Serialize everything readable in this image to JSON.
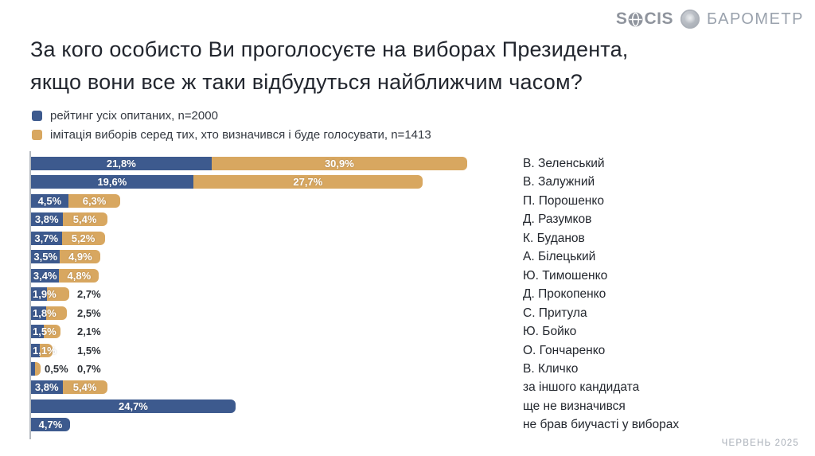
{
  "header": {
    "brand": "SOCIS",
    "product": "БАРОМЕТР"
  },
  "title": {
    "line1": "За кого особисто Ви проголосуєте на виборах Президента,",
    "line2": "якщо вони все ж таки відбудуться найближчим часом?"
  },
  "legend": {
    "items": [
      {
        "label": "рейтинг усіх опитаних, n=2000",
        "color": "#3d5a8e"
      },
      {
        "label": "імітація виборів серед тих, хто визначився і буде голосувати, n=1413",
        "color": "#d8a760"
      }
    ]
  },
  "chart_data": {
    "type": "bar",
    "orientation": "horizontal",
    "stacked": false,
    "value_unit": "%",
    "decimal_separator": ",",
    "title": "За кого особисто Ви проголосуєте на виборах Президента, якщо вони все ж таки відбудуться найближчим часом?",
    "legend_position": "top-left",
    "value_axis_hidden": true,
    "value_labels_shown": true,
    "categories": [
      "В. Зеленський",
      "В. Залужний",
      "П. Порошенко",
      "Д. Разумков",
      "К. Буданов",
      "А. Білецький",
      "Ю. Тимошенко",
      "Д. Прокопенко",
      "С. Притула",
      "Ю. Бойко",
      "О. Гончаренко",
      "В. Кличко",
      "за іншого кандидата",
      "ще не визначився",
      "не брав биучасті у виборах"
    ],
    "series": [
      {
        "name": "рейтинг усіх опитаних, n=2000",
        "color": "#3d5a8e",
        "values": [
          21.8,
          19.6,
          4.5,
          3.8,
          3.7,
          3.5,
          3.4,
          1.9,
          1.8,
          1.5,
          1.1,
          0.5,
          3.8,
          24.7,
          4.7
        ]
      },
      {
        "name": "імітація виборів серед тих, хто визначився і буде голосувати, n=1413",
        "color": "#d8a760",
        "values": [
          30.9,
          27.7,
          6.3,
          5.4,
          5.2,
          4.9,
          4.8,
          2.7,
          2.5,
          2.1,
          1.5,
          0.7,
          5.4,
          null,
          null
        ]
      }
    ]
  },
  "footer": {
    "date": "ЧЕРВЕНЬ 2025"
  }
}
